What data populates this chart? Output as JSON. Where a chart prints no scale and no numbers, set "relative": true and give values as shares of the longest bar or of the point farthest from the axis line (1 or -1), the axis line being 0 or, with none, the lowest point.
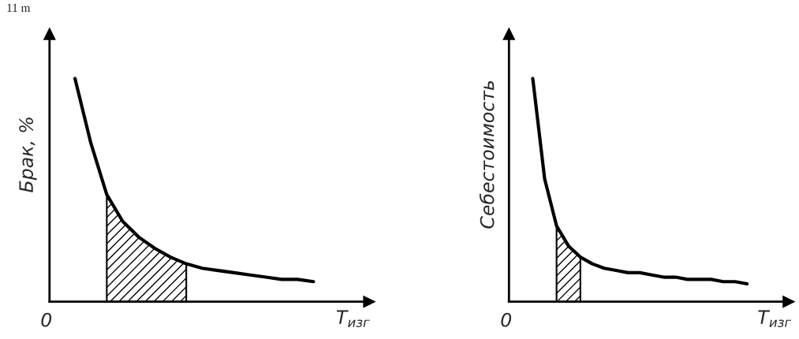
{
  "chart_data": [
    {
      "type": "line",
      "relative": true,
      "ylabel": "Брак, %",
      "xlabel": "T$_{изг}$",
      "annotations": [
        "11 m",
        "0"
      ],
      "categories": [
        null,
        null,
        null,
        null,
        null,
        null,
        null,
        null,
        null,
        null,
        null,
        null,
        null,
        null,
        null,
        null
      ],
      "series": [
        {
          "color": "#000000",
          "values": [
            1.0,
            0.71,
            0.48,
            0.36,
            0.29,
            0.24,
            0.2,
            0.17,
            0.15,
            0.14,
            0.13,
            0.12,
            0.11,
            0.1,
            0.1,
            0.09
          ]
        },
        {
          "type": "area",
          "color": "#000000",
          "values": [
            null,
            null,
            0.48,
            0.36,
            0.29,
            0.24,
            0.2,
            0.17,
            null,
            null,
            null,
            null,
            null,
            null,
            null,
            null
          ]
        }
      ]
    },
    {
      "type": "line",
      "relative": true,
      "ylabel": "Себестоимость",
      "xlabel": "T$_{изг}$",
      "annotations": [
        "0"
      ],
      "categories": [
        null,
        null,
        null,
        null,
        null,
        null,
        null,
        null,
        null,
        null,
        null,
        null,
        null,
        null,
        null,
        null,
        null,
        null,
        null
      ],
      "series": [
        {
          "color": "#000000",
          "values": [
            1.0,
            0.55,
            0.34,
            0.25,
            0.2,
            0.17,
            0.15,
            0.14,
            0.13,
            0.13,
            0.12,
            0.11,
            0.11,
            0.1,
            0.1,
            0.1,
            0.09,
            0.09,
            0.08
          ]
        },
        {
          "type": "area",
          "color": "#000000",
          "values": [
            null,
            null,
            0.34,
            0.25,
            0.2,
            null,
            null,
            null,
            null,
            null,
            null,
            null,
            null,
            null,
            null,
            null,
            null,
            null,
            null
          ]
        }
      ]
    }
  ]
}
